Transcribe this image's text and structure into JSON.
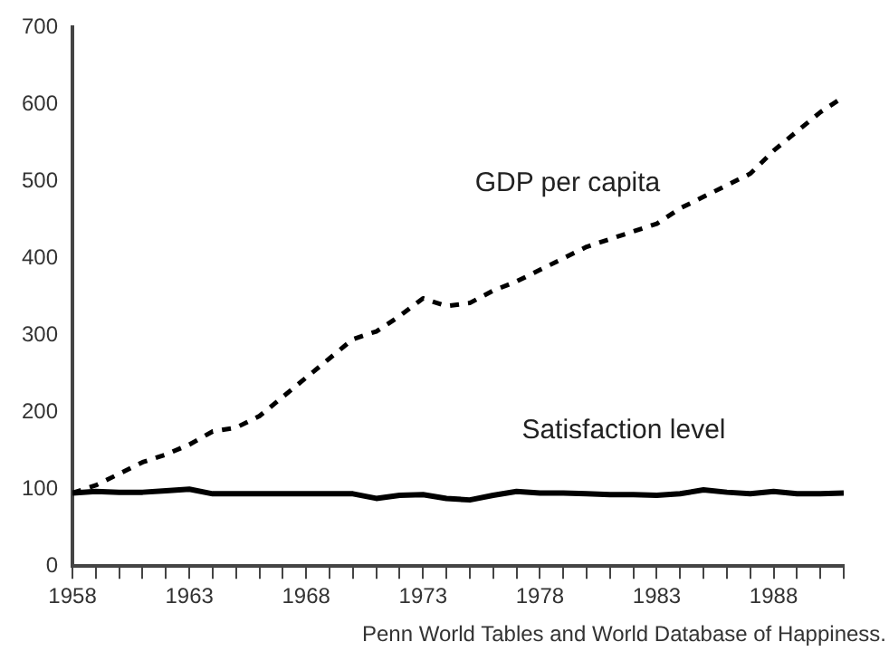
{
  "chart_data": {
    "type": "line",
    "x": [
      1958,
      1959,
      1960,
      1961,
      1962,
      1963,
      1964,
      1965,
      1966,
      1967,
      1968,
      1969,
      1970,
      1971,
      1972,
      1973,
      1974,
      1975,
      1976,
      1977,
      1978,
      1979,
      1980,
      1981,
      1982,
      1983,
      1984,
      1985,
      1986,
      1987,
      1988,
      1989,
      1990,
      1991
    ],
    "series": [
      {
        "name": "GDP per capita",
        "color": "#000000",
        "line_style": "dashed",
        "values": [
          95,
          105,
          120,
          135,
          145,
          158,
          175,
          180,
          195,
          220,
          245,
          270,
          295,
          305,
          325,
          348,
          338,
          342,
          358,
          370,
          385,
          400,
          415,
          425,
          435,
          445,
          465,
          480,
          495,
          510,
          540,
          565,
          590,
          610
        ]
      },
      {
        "name": "Satisfaction level",
        "color": "#000000",
        "line_style": "solid",
        "values": [
          95,
          97,
          96,
          96,
          98,
          100,
          94,
          94,
          94,
          94,
          94,
          94,
          94,
          88,
          92,
          93,
          88,
          86,
          92,
          97,
          95,
          95,
          94,
          93,
          93,
          92,
          94,
          99,
          96,
          94,
          97,
          94,
          94,
          95
        ]
      }
    ],
    "xlim": [
      1958,
      1991
    ],
    "xticks": [
      1958,
      {
        "value": 1959,
        "label": null
      },
      {
        "value": 1960,
        "label": null
      },
      {
        "value": 1961,
        "label": null
      },
      {
        "value": 1962,
        "label": null
      },
      1963,
      {
        "value": 1964,
        "label": null
      },
      {
        "value": 1965,
        "label": null
      },
      {
        "value": 1966,
        "label": null
      },
      {
        "value": 1967,
        "label": null
      },
      1968,
      {
        "value": 1969,
        "label": null
      },
      {
        "value": 1970,
        "label": null
      },
      {
        "value": 1971,
        "label": null
      },
      {
        "value": 1972,
        "label": null
      },
      1973,
      {
        "value": 1974,
        "label": null
      },
      {
        "value": 1975,
        "label": null
      },
      {
        "value": 1976,
        "label": null
      },
      {
        "value": 1977,
        "label": null
      },
      1978,
      {
        "value": 1979,
        "label": null
      },
      {
        "value": 1980,
        "label": null
      },
      {
        "value": 1981,
        "label": null
      },
      {
        "value": 1982,
        "label": null
      },
      1983,
      {
        "value": 1984,
        "label": null
      },
      {
        "value": 1985,
        "label": null
      },
      {
        "value": 1986,
        "label": null
      },
      {
        "value": 1987,
        "label": null
      },
      1988,
      {
        "value": 1989,
        "label": null
      },
      {
        "value": 1990,
        "label": null
      },
      {
        "value": 1991,
        "label": null
      }
    ],
    "ylim": [
      0,
      700
    ],
    "yticks": [
      0,
      100,
      200,
      300,
      400,
      500,
      600,
      700
    ],
    "grid": false,
    "legend": false,
    "marker": "none",
    "annotations": [
      "Penn World Tables and World Database of Happiness."
    ]
  }
}
